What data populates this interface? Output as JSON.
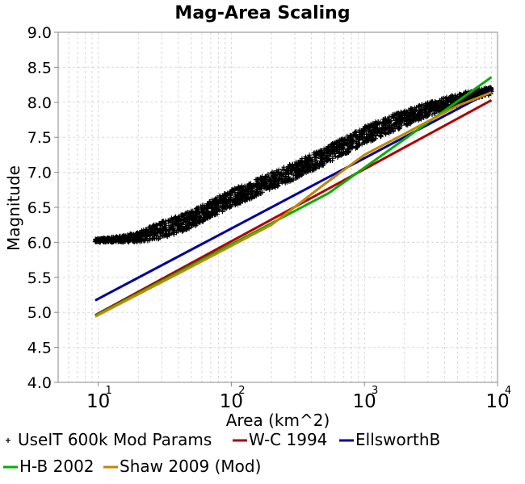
{
  "chart_data": {
    "type": "scatter",
    "title": "Mag-Area Scaling",
    "xlabel": "Area (km^2)",
    "ylabel": "Magnitude",
    "xscale": "log",
    "xlim": [
      5,
      10000
    ],
    "ylim": [
      4.0,
      9.0
    ],
    "x_ticks": [
      {
        "base": "10",
        "exp": "1",
        "value": 10
      },
      {
        "base": "10",
        "exp": "2",
        "value": 100
      },
      {
        "base": "10",
        "exp": "3",
        "value": 1000
      },
      {
        "base": "10",
        "exp": "4",
        "value": 10000
      }
    ],
    "y_ticks": [
      "4.0",
      "4.5",
      "5.0",
      "5.5",
      "6.0",
      "6.5",
      "7.0",
      "7.5",
      "8.0",
      "8.5",
      "9.0"
    ],
    "grid": true,
    "legend_position": "bottom",
    "series": [
      {
        "name": "UseIT 600k Mod Params",
        "kind": "scatter",
        "marker": "+",
        "color": "#000000",
        "band": {
          "x": [
            9.5,
            12,
            16,
            20,
            30,
            50,
            70,
            100,
            150,
            200,
            300,
            500,
            700,
            1000,
            1500,
            2000,
            3000,
            5000,
            7000,
            9000
          ],
          "lower": [
            6.0,
            6.0,
            6.0,
            6.0,
            6.05,
            6.2,
            6.35,
            6.5,
            6.65,
            6.75,
            6.9,
            7.1,
            7.25,
            7.4,
            7.55,
            7.65,
            7.8,
            7.95,
            8.05,
            8.1
          ],
          "upper": [
            6.05,
            6.07,
            6.1,
            6.15,
            6.3,
            6.45,
            6.6,
            6.75,
            6.9,
            7.0,
            7.15,
            7.35,
            7.5,
            7.65,
            7.8,
            7.88,
            8.0,
            8.12,
            8.18,
            8.22
          ]
        }
      },
      {
        "name": "W-C 1994",
        "kind": "line",
        "color": "#b00000",
        "x": [
          9.5,
          9000
        ],
        "y": [
          4.96,
          8.03
        ]
      },
      {
        "name": "EllsworthB",
        "kind": "line",
        "color": "#0000a0",
        "x": [
          9.5,
          9000
        ],
        "y": [
          5.17,
          8.16
        ]
      },
      {
        "name": "H-B 2002",
        "kind": "line",
        "color": "#00b000",
        "x": [
          9.5,
          537,
          9000
        ],
        "y": [
          4.95,
          6.7,
          8.36
        ]
      },
      {
        "name": "Shaw 2009 (Mod)",
        "kind": "line",
        "color": "#c08800",
        "x": [
          9.5,
          50,
          200,
          500,
          1000,
          2000,
          5000,
          9000
        ],
        "y": [
          4.94,
          5.65,
          6.25,
          6.83,
          7.25,
          7.55,
          7.95,
          8.14
        ]
      }
    ]
  }
}
